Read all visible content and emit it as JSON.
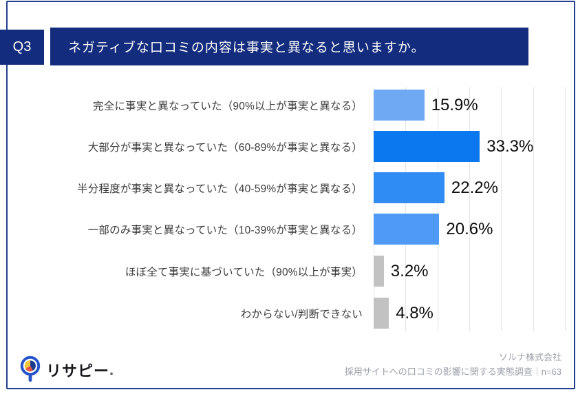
{
  "header": {
    "q_label": "Q3",
    "title": "ネガティブな口コミの内容は事実と異なると思いますか。"
  },
  "chart_data": {
    "type": "bar",
    "orientation": "horizontal",
    "title": "ネガティブな口コミの内容は事実と異なると思いますか。",
    "categories": [
      "完全に事実と異なっていた（90%以上が事実と異なる）",
      "大部分が事実と異なっていた（60-89%が事実と異なる）",
      "半分程度が事実と異なっていた（40-59%が事実と異なる）",
      "一部のみ事実と異なっていた（10-39%が事実と異なる）",
      "ほぼ全て事実に基づいていた（90%以上が事実）",
      "わからない/判断できない"
    ],
    "values": [
      15.9,
      33.3,
      22.2,
      20.6,
      3.2,
      4.8
    ],
    "value_labels": [
      "15.9%",
      "33.3%",
      "22.2%",
      "20.6%",
      "3.2%",
      "4.8%"
    ],
    "bar_colors": [
      "#6FA9F4",
      "#0B78F0",
      "#2F8CF2",
      "#4E9AF4",
      "#C2C2C2",
      "#C2C2C2"
    ],
    "xlim": [
      0,
      60
    ],
    "gridline_interval": 10,
    "grid": true,
    "legend": false
  },
  "footer": {
    "logo_text": "リサピー",
    "logo_suffix": ".",
    "source_line1": "ソルナ株式会社",
    "source_line2": "採用サイトへの口コミの影響に関する実態調査｜n=63"
  },
  "colors": {
    "navy": "#142C7D",
    "card_border": "#24408C",
    "gridline": "#e3e3e3",
    "label_text": "#3d3d3d",
    "value_text": "#0d0d0d",
    "source_text": "#9aa0a8",
    "logo_blue": "#2553C8",
    "logo_yellow": "#F5C53C",
    "logo_red": "#E8553E",
    "logo_navy": "#1B3C8C"
  }
}
